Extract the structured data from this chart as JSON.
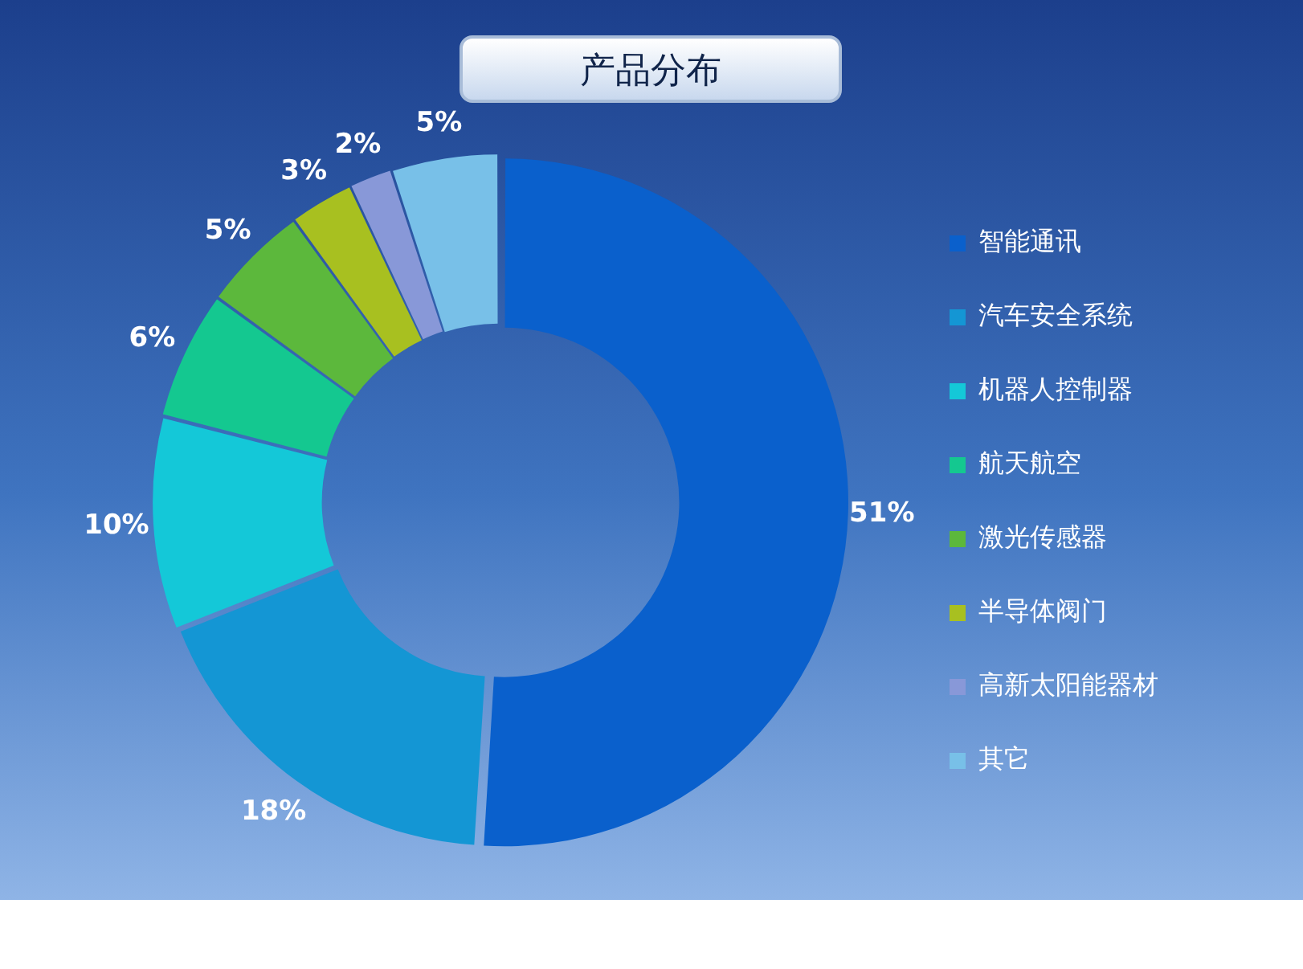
{
  "chart_data": {
    "type": "donut",
    "title": "产品分布",
    "categories": [
      "智能通讯",
      "汽车安全系统",
      "机器人控制器",
      "航天航空",
      "激光传感器",
      "半导体阀门",
      "高新太阳能器材",
      "其它"
    ],
    "values": [
      51,
      18,
      10,
      6,
      5,
      3,
      2,
      5
    ],
    "colors": [
      "#0a60cc",
      "#1496d4",
      "#14c8d8",
      "#14c890",
      "#5cb83c",
      "#a8c020",
      "#8898d8",
      "#78c0e8"
    ],
    "value_labels": [
      "51%",
      "18%",
      "10%",
      "6%",
      "5%",
      "3%",
      "2%",
      "5%"
    ],
    "legend": "right"
  }
}
